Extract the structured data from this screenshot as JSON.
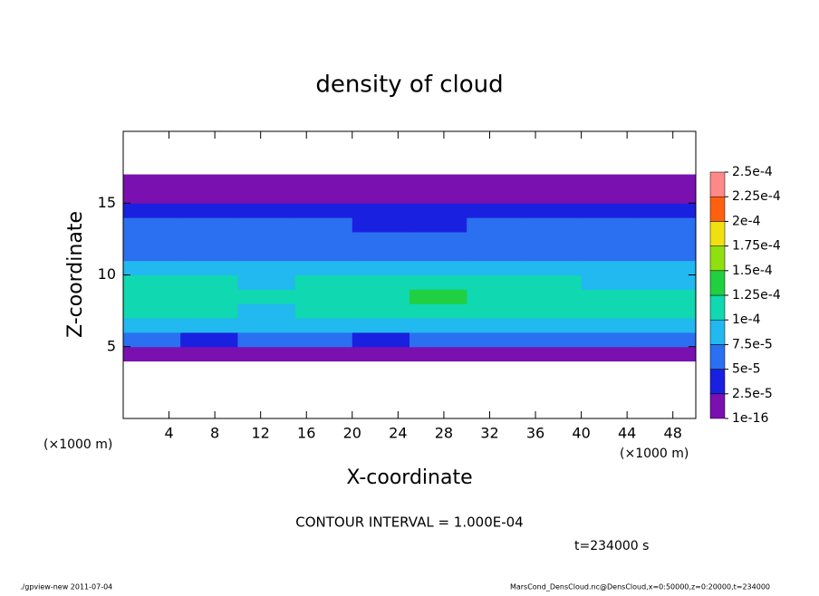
{
  "chart_data": {
    "type": "heatmap",
    "title": "density of cloud",
    "xlabel": "X-coordinate",
    "ylabel": "Z-coordinate",
    "xunit_left": "(×1000 m)",
    "xunit_right": "(×1000 m)",
    "contour_note": "CONTOUR INTERVAL = 1.000E-04",
    "time_note": "t=234000 s",
    "footer_left": "./gpview-new  2011-07-04",
    "footer_right": "MarsCond_DensCloud.nc@DensCloud,x=0:50000,z=0:20000,t=234000",
    "xlim": [
      0,
      50
    ],
    "ylim": [
      0,
      20
    ],
    "xticks": [
      4,
      8,
      12,
      16,
      20,
      24,
      28,
      32,
      36,
      40,
      44,
      48
    ],
    "yticks": [
      5,
      10,
      15
    ],
    "x": [
      2.5,
      7.5,
      12.5,
      17.5,
      22.5,
      27.5,
      32.5,
      37.5,
      42.5,
      47.5
    ],
    "y": [
      4.5,
      5.5,
      6.5,
      7.5,
      8.5,
      9.5,
      10.5,
      11.5,
      12.5,
      13.5,
      14.5,
      15.5,
      16.5
    ],
    "z": [
      [
        1e-05,
        1e-05,
        2e-05,
        1e-05,
        1e-05,
        1e-05,
        1e-05,
        1e-05,
        1e-05,
        1e-05
      ],
      [
        6e-05,
        4e-05,
        6e-05,
        6e-05,
        4e-05,
        5e-05,
        6e-05,
        6e-05,
        5e-05,
        6e-05
      ],
      [
        9e-05,
        9e-05,
        8e-05,
        9e-05,
        8e-05,
        9e-05,
        9e-05,
        9e-05,
        9e-05,
        9e-05
      ],
      [
        0.00011,
        0.00012,
        9e-05,
        0.00011,
        0.00011,
        0.00012,
        0.00012,
        0.00011,
        0.00011,
        0.00011
      ],
      [
        0.00012,
        0.00012,
        0.00011,
        0.00011,
        0.00012,
        0.00013,
        0.00012,
        0.00012,
        0.00011,
        0.00011
      ],
      [
        0.0001,
        0.0001,
        9e-05,
        0.0001,
        0.0001,
        0.0001,
        0.0001,
        0.0001,
        9e-05,
        9e-05
      ],
      [
        8e-05,
        8e-05,
        8e-05,
        8e-05,
        8e-05,
        8e-05,
        8e-05,
        8e-05,
        8e-05,
        8e-05
      ],
      [
        7e-05,
        7e-05,
        7e-05,
        7e-05,
        7e-05,
        7e-05,
        7e-05,
        7e-05,
        7e-05,
        7e-05
      ],
      [
        6e-05,
        6e-05,
        6e-05,
        6e-05,
        5e-05,
        5e-05,
        6e-05,
        6e-05,
        6e-05,
        6e-05
      ],
      [
        5e-05,
        5e-05,
        5e-05,
        5e-05,
        4e-05,
        4e-05,
        5e-05,
        5e-05,
        5e-05,
        5e-05
      ],
      [
        4e-05,
        4e-05,
        4e-05,
        4e-05,
        4e-05,
        4e-05,
        4e-05,
        4e-05,
        4e-05,
        4e-05
      ],
      [
        2e-05,
        2e-05,
        2e-05,
        2e-05,
        2e-05,
        2e-05,
        2e-05,
        2e-05,
        2e-05,
        2e-05
      ],
      [
        1e-05,
        1e-05,
        1e-05,
        1e-05,
        1e-05,
        1e-05,
        1e-05,
        1e-05,
        1e-05,
        1e-05
      ]
    ],
    "levels": [
      {
        "value": 1e-16,
        "label": "1e-16"
      },
      {
        "value": 2.5e-05,
        "label": "2.5e-5"
      },
      {
        "value": 5e-05,
        "label": "5e-5"
      },
      {
        "value": 7.5e-05,
        "label": "7.5e-5"
      },
      {
        "value": 0.0001,
        "label": "1e-4"
      },
      {
        "value": 0.000125,
        "label": "1.25e-4"
      },
      {
        "value": 0.00015,
        "label": "1.5e-4"
      },
      {
        "value": 0.000175,
        "label": "1.75e-4"
      },
      {
        "value": 0.0002,
        "label": "2e-4"
      },
      {
        "value": 0.000225,
        "label": "2.25e-4"
      },
      {
        "value": 0.00025,
        "label": "2.5e-4"
      }
    ],
    "colors": [
      "#7a10b0",
      "#1a20e0",
      "#2a70f0",
      "#22b8f0",
      "#10d8b0",
      "#20d040",
      "#90e010",
      "#f0e010",
      "#ff6010",
      "#ff8888"
    ]
  }
}
